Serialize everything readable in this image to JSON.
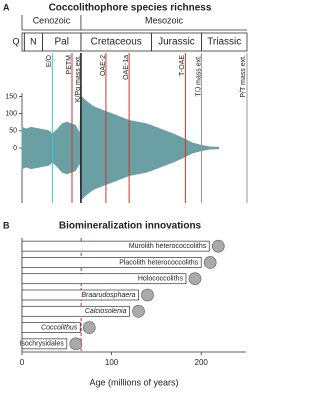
{
  "chart_data": [
    {
      "type": "area",
      "panel": "A",
      "title": "Coccolithophore species richness",
      "eras": [
        {
          "name": "Cenozoic",
          "start": 0,
          "end": 66
        },
        {
          "name": "Mesozoic",
          "start": 66,
          "end": 252
        }
      ],
      "periods": [
        {
          "name": "Q",
          "start": 0,
          "end": 2.6
        },
        {
          "name": "N",
          "start": 2.6,
          "end": 23
        },
        {
          "name": "Pal",
          "start": 23,
          "end": 66
        },
        {
          "name": "Cretaceous",
          "start": 66,
          "end": 145
        },
        {
          "name": "Jurassic",
          "start": 145,
          "end": 201
        },
        {
          "name": "Triassic",
          "start": 201,
          "end": 252
        }
      ],
      "events": [
        {
          "label": "E/O",
          "age": 34,
          "color": "#3fc1d9"
        },
        {
          "label": "PETM",
          "age": 56,
          "color": "#c0392b"
        },
        {
          "label": "K/Pg mass ext.",
          "age": 66,
          "color": "#222222"
        },
        {
          "label": "OAE-2",
          "age": 94,
          "color": "#c0392b"
        },
        {
          "label": "OAE-1a",
          "age": 120,
          "color": "#c0392b"
        },
        {
          "label": "T-OAE",
          "age": 183,
          "color": "#c0392b"
        },
        {
          "label": "T/J mass ext.",
          "age": 201,
          "color": "#999999"
        },
        {
          "label": "P/T mass ext.",
          "age": 252,
          "color": "#999999"
        }
      ],
      "x": [
        0,
        5,
        10,
        20,
        30,
        34,
        40,
        45,
        50,
        56,
        60,
        65,
        66,
        70,
        80,
        90,
        100,
        110,
        120,
        130,
        140,
        150,
        160,
        170,
        183,
        190,
        200,
        210,
        220
      ],
      "values": [
        60,
        55,
        60,
        55,
        50,
        40,
        55,
        70,
        75,
        70,
        65,
        40,
        150,
        140,
        120,
        110,
        100,
        90,
        80,
        75,
        70,
        60,
        50,
        40,
        25,
        15,
        8,
        3,
        2
      ],
      "color": "#6a9fa3",
      "xlim": [
        0,
        252
      ],
      "ylim": [
        -160,
        160
      ],
      "yticks": [
        0,
        50,
        100,
        150
      ]
    },
    {
      "type": "hbar",
      "panel": "B",
      "title": "Biomineralization innovations",
      "categories": [
        "Murolith heterococcoliths",
        "Placolith heterococcoliths",
        "Holococcoliths",
        "Braarudosphaera",
        "Calciosolenia",
        "Coccolithus",
        "Isochrysidales"
      ],
      "values": [
        209,
        200,
        183,
        130,
        120,
        65,
        50
      ],
      "italic": [
        false,
        false,
        false,
        true,
        true,
        true,
        false
      ],
      "color": "#ffffff",
      "reference_x": 66,
      "reference_color": "#c0392b",
      "xlim": [
        0,
        250
      ],
      "xticks": [
        0,
        100,
        200
      ],
      "x_label": "Age (millions of years)"
    }
  ]
}
